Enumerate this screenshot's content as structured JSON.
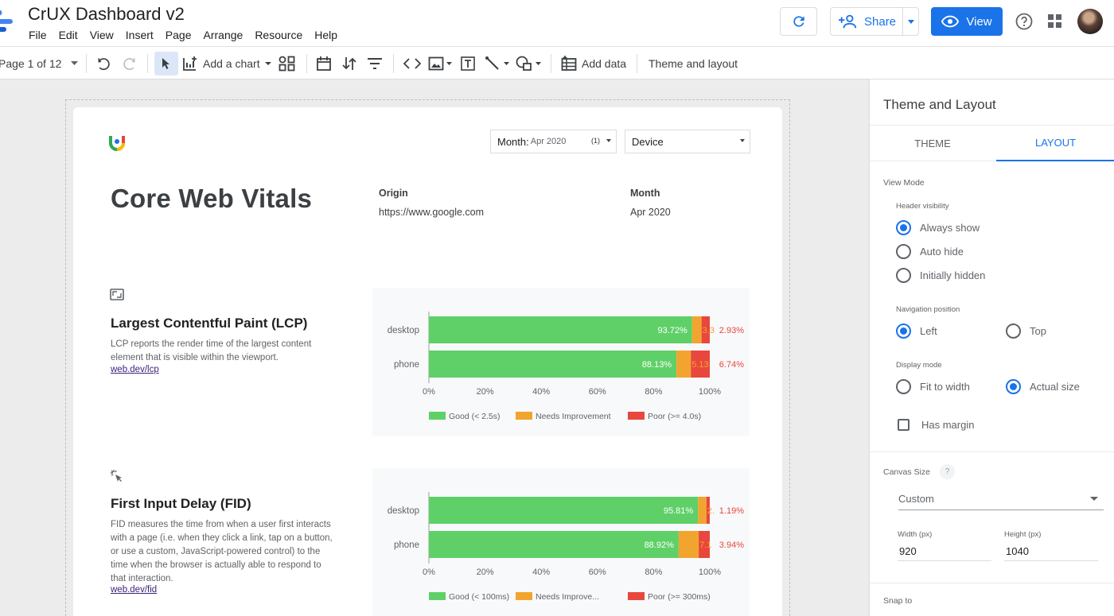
{
  "app": {
    "title": "CrUX Dashboard v2",
    "menu": [
      "File",
      "Edit",
      "View",
      "Insert",
      "Page",
      "Arrange",
      "Resource",
      "Help"
    ],
    "share_label": "Share",
    "view_label": "View",
    "colors": {
      "accent": "#1a73e8"
    }
  },
  "toolbar": {
    "page_label": "Page 1 of 12",
    "add_chart_label": "Add a chart",
    "add_data_label": "Add data",
    "theme_layout_label": "Theme and layout"
  },
  "report": {
    "title": "Core Web Vitals",
    "filters": {
      "month_label": "Month:",
      "month_value": "Apr 2020",
      "month_count": "(1)",
      "device_label": "Device"
    },
    "origin_label": "Origin",
    "origin_value": "https://www.google.com",
    "month_label": "Month",
    "month_value": "Apr 2020",
    "sections": [
      {
        "title": "Largest Contentful Paint (LCP)",
        "description": "LCP reports the render time of the largest content element that is visible within the viewport.",
        "link": "web.dev/lcp"
      },
      {
        "title": "First Input Delay (FID)",
        "description": "FID measures the time from when a user first interacts with a page (i.e. when they click a link, tap on a button, or use a custom, JavaScript-powered control) to the time when the browser is actually able to respond to that interaction.",
        "link": "web.dev/fid"
      }
    ]
  },
  "chart_data": [
    {
      "type": "bar",
      "orientation": "horizontal",
      "stacked": true,
      "categories": [
        "desktop",
        "phone"
      ],
      "series": [
        {
          "name": "Good (< 2.5s)",
          "values": [
            93.72,
            88.13
          ],
          "color": "#5fd068"
        },
        {
          "name": "Needs Improvement",
          "values": [
            3.35,
            5.13
          ],
          "color": "#f2a52e"
        },
        {
          "name": "Poor (>= 4.0s)",
          "values": [
            2.93,
            6.74
          ],
          "color": "#e8473d"
        }
      ],
      "value_labels": [
        [
          "93.72%",
          "3.3",
          "2.93%"
        ],
        [
          "88.13%",
          "5.13",
          "6.74%"
        ]
      ],
      "x_ticks": [
        "0%",
        "20%",
        "40%",
        "60%",
        "80%",
        "100%"
      ],
      "xlim": [
        0,
        100
      ],
      "legend_position": "bottom"
    },
    {
      "type": "bar",
      "orientation": "horizontal",
      "stacked": true,
      "categories": [
        "desktop",
        "phone"
      ],
      "series": [
        {
          "name": "Good (< 100ms)",
          "values": [
            95.81,
            88.92
          ],
          "color": "#5fd068"
        },
        {
          "name": "Needs Improve...",
          "values": [
            2.99,
            7.14
          ],
          "color": "#f2a52e"
        },
        {
          "name": "Poor (>= 300ms)",
          "values": [
            1.19,
            3.94
          ],
          "color": "#e8473d"
        }
      ],
      "value_labels": [
        [
          "95.81%",
          "2.",
          "1.19%"
        ],
        [
          "88.92%",
          "7.1",
          "3.94%"
        ]
      ],
      "x_ticks": [
        "0%",
        "20%",
        "40%",
        "60%",
        "80%",
        "100%"
      ],
      "xlim": [
        0,
        100
      ],
      "legend_position": "bottom"
    }
  ],
  "panel": {
    "title": "Theme and Layout",
    "tabs": [
      "THEME",
      "LAYOUT"
    ],
    "active_tab": "LAYOUT",
    "view_mode_label": "View Mode",
    "header_visibility_label": "Header visibility",
    "header_options": [
      "Always show",
      "Auto hide",
      "Initially hidden"
    ],
    "header_selected": "Always show",
    "nav_position_label": "Navigation position",
    "nav_options": [
      "Left",
      "Top"
    ],
    "nav_selected": "Left",
    "display_mode_label": "Display mode",
    "display_options": [
      "Fit to width",
      "Actual size"
    ],
    "display_selected": "Actual size",
    "has_margin_label": "Has margin",
    "canvas_size_label": "Canvas Size",
    "canvas_size_value": "Custom",
    "width_label": "Width (px)",
    "width_value": "920",
    "height_label": "Height (px)",
    "height_value": "1040",
    "snap_label": "Snap to"
  }
}
